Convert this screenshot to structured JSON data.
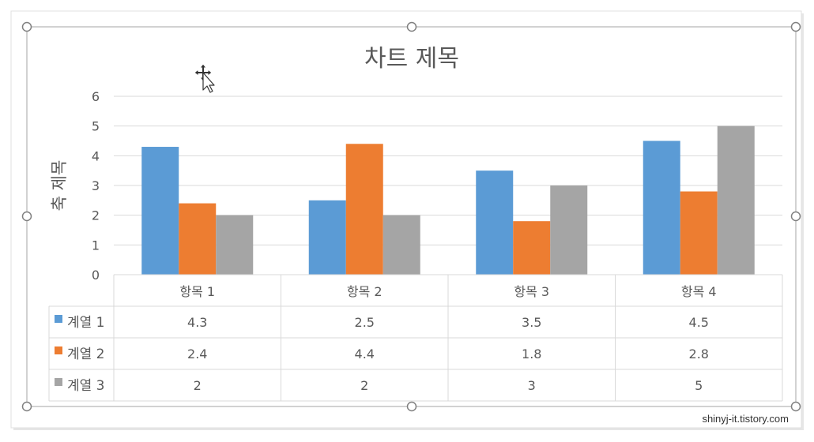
{
  "colors": {
    "series_1": "#5b9bd5",
    "series_2": "#ed7d31",
    "series_3": "#a5a5a5",
    "gridline": "#d9d9d9",
    "table_border": "#d9d9d9",
    "text": "#595959",
    "frame": "#a6a6a6",
    "handle": "#808080"
  },
  "chart_data": {
    "type": "bar",
    "title": "차트 제목",
    "ylabel": "축 제목",
    "xlabel": "",
    "categories": [
      "항목 1",
      "항목 2",
      "항목 3",
      "항목 4"
    ],
    "ylim": [
      0,
      6
    ],
    "yticks": [
      "0",
      "1",
      "2",
      "3",
      "4",
      "5",
      "6"
    ],
    "grid": true,
    "legend": "data-table",
    "series": [
      {
        "name": "계열 1",
        "values": [
          4.3,
          2.5,
          3.5,
          4.5
        ]
      },
      {
        "name": "계열 2",
        "values": [
          2.4,
          4.4,
          1.8,
          2.8
        ]
      },
      {
        "name": "계열 3",
        "values": [
          2,
          2,
          3,
          5
        ]
      }
    ],
    "table_values": [
      [
        "4.3",
        "2.5",
        "3.5",
        "4.5"
      ],
      [
        "2.4",
        "4.4",
        "1.8",
        "2.8"
      ],
      [
        "2",
        "2",
        "3",
        "5"
      ]
    ]
  },
  "cursor": {
    "icon": "move-cursor-icon"
  },
  "watermark": "shinyj-it.tistory.com"
}
